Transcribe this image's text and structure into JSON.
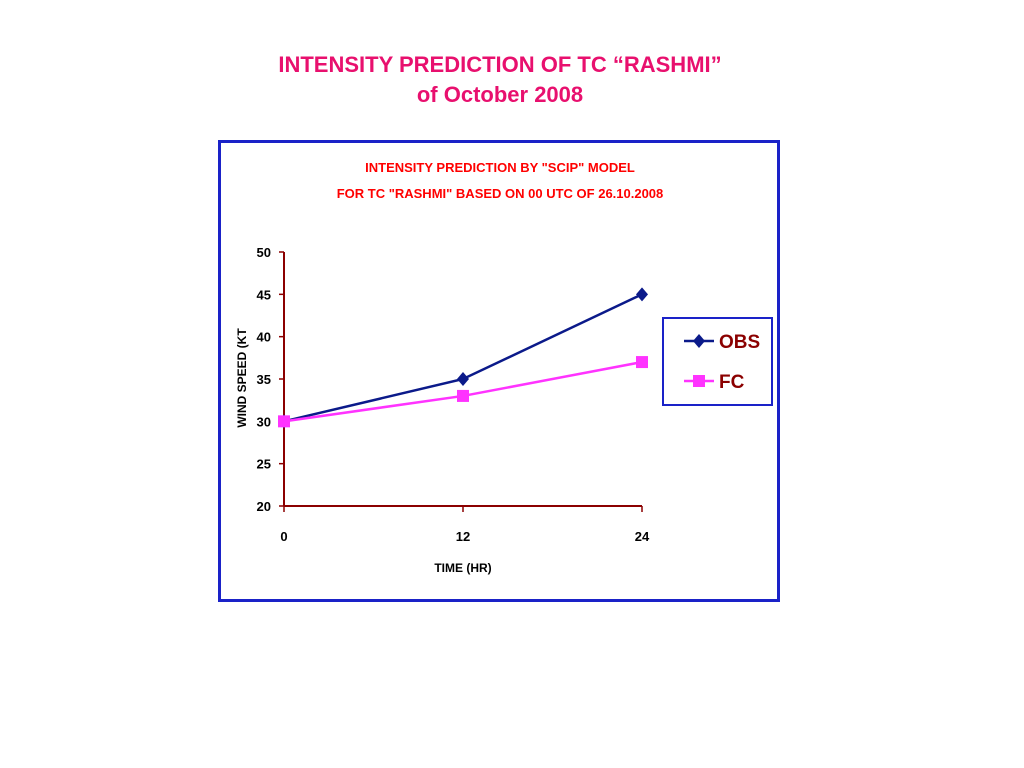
{
  "page": {
    "title_line1": "INTENSITY PREDICTION OF TC “RASHMI”",
    "title_line2": "of October 2008"
  },
  "colors": {
    "page_title": "#e8106e",
    "frame_border": "#1a22c8",
    "chart_title": "#ff0000",
    "axis_line": "#8b0000",
    "legend_text": "#8b0000"
  },
  "chart_data": {
    "type": "line",
    "title_line1": "INTENSITY PREDICTION BY \"SCIP\" MODEL",
    "title_line2": "FOR TC \"RASHMI\" BASED ON 00 UTC OF 26.10.2008",
    "xlabel": "TIME (HR)",
    "ylabel": "WIND SPEED (KT",
    "x": [
      0,
      12,
      24
    ],
    "xlim": [
      0,
      24
    ],
    "ylim": [
      20,
      50
    ],
    "yticks": [
      20,
      25,
      30,
      35,
      40,
      45,
      50
    ],
    "xticks": [
      0,
      12,
      24
    ],
    "grid": false,
    "legend_position": "right",
    "series": [
      {
        "name": "OBS",
        "values": [
          30,
          35,
          45
        ],
        "color": "#0b1a8a",
        "marker": "diamond"
      },
      {
        "name": "FC",
        "values": [
          30,
          33,
          37
        ],
        "color": "#ff33ff",
        "marker": "square"
      }
    ]
  }
}
